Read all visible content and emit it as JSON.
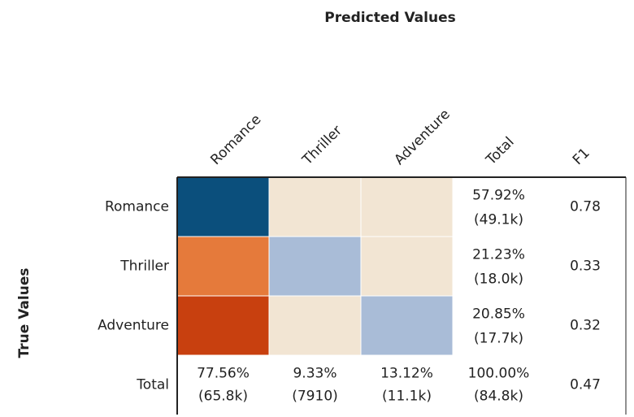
{
  "title": "Predicted Values",
  "y_axis_label": "True Values",
  "columns": [
    "Romance",
    "Thriller",
    "Adventure",
    "Total",
    "F1"
  ],
  "rows": [
    {
      "label": "Romance",
      "cell_colors": [
        "#0b4f7c",
        "#f2e5d3",
        "#f2e5d3"
      ],
      "total": [
        "57.92%",
        "(49.1k)"
      ],
      "f1": "0.78"
    },
    {
      "label": "Thriller",
      "cell_colors": [
        "#e57a3b",
        "#a9bcd7",
        "#f2e5d3"
      ],
      "total": [
        "21.23%",
        "(18.0k)"
      ],
      "f1": "0.33"
    },
    {
      "label": "Adventure",
      "cell_colors": [
        "#c8400f",
        "#f2e5d3",
        "#a9bcd7"
      ],
      "total": [
        "20.85%",
        "(17.7k)"
      ],
      "f1": "0.32"
    }
  ],
  "total_row": {
    "label": "Total",
    "totals": [
      [
        "77.56%",
        "(65.8k)"
      ],
      [
        "9.33%",
        "(7910)"
      ],
      [
        "13.12%",
        "(11.1k)"
      ],
      [
        "100.00%",
        "(84.8k)"
      ]
    ],
    "f1": "0.47"
  }
}
